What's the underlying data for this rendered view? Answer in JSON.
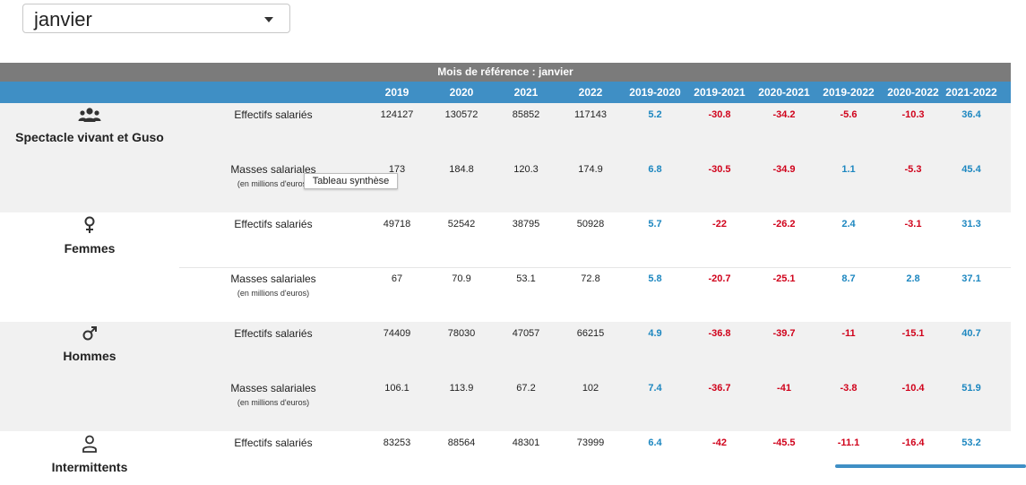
{
  "month_select": {
    "value": "janvier"
  },
  "table": {
    "title": "Mois de référence : janvier",
    "columns": [
      "2019",
      "2020",
      "2021",
      "2022",
      "2019-2020",
      "2019-2021",
      "2020-2021",
      "2019-2022",
      "2020-2022",
      "2021-2022"
    ],
    "colors": {
      "header": "#3f8fc5",
      "title_bar": "#7b7b7b",
      "positive": "#1d87c0",
      "negative": "#d0021b"
    },
    "sections": [
      {
        "name": "Spectacle vivant et Guso",
        "icon": "group-icon",
        "rows": [
          {
            "label": "Effectifs salariés",
            "sub": "",
            "values": [
              "124127",
              "130572",
              "85852",
              "117143",
              "5.2",
              "-30.8",
              "-34.2",
              "-5.6",
              "-10.3",
              "36.4"
            ]
          },
          {
            "label": "Masses salariales",
            "sub": "(en millions d'euros)",
            "values": [
              "173",
              "184.8",
              "120.3",
              "174.9",
              "6.8",
              "-30.5",
              "-34.9",
              "1.1",
              "-5.3",
              "45.4"
            ]
          }
        ]
      },
      {
        "name": "Femmes",
        "icon": "female-icon",
        "rows": [
          {
            "label": "Effectifs salariés",
            "sub": "",
            "values": [
              "49718",
              "52542",
              "38795",
              "50928",
              "5.7",
              "-22",
              "-26.2",
              "2.4",
              "-3.1",
              "31.3"
            ]
          },
          {
            "label": "Masses salariales",
            "sub": "(en millions d'euros)",
            "values": [
              "67",
              "70.9",
              "53.1",
              "72.8",
              "5.8",
              "-20.7",
              "-25.1",
              "8.7",
              "2.8",
              "37.1"
            ]
          }
        ]
      },
      {
        "name": "Hommes",
        "icon": "male-icon",
        "rows": [
          {
            "label": "Effectifs salariés",
            "sub": "",
            "values": [
              "74409",
              "78030",
              "47057",
              "66215",
              "4.9",
              "-36.8",
              "-39.7",
              "-11",
              "-15.1",
              "40.7"
            ]
          },
          {
            "label": "Masses salariales",
            "sub": "(en millions d'euros)",
            "values": [
              "106.1",
              "113.9",
              "67.2",
              "102",
              "7.4",
              "-36.7",
              "-41",
              "-3.8",
              "-10.4",
              "51.9"
            ]
          }
        ]
      },
      {
        "name": "Intermittents",
        "icon": "person-icon",
        "rows": [
          {
            "label": "Effectifs salariés",
            "sub": "",
            "values": [
              "83253",
              "88564",
              "48301",
              "73999",
              "6.4",
              "-42",
              "-45.5",
              "-11.1",
              "-16.4",
              "53.2"
            ]
          }
        ]
      }
    ]
  },
  "tooltip": {
    "text": "Tableau synthèse"
  }
}
